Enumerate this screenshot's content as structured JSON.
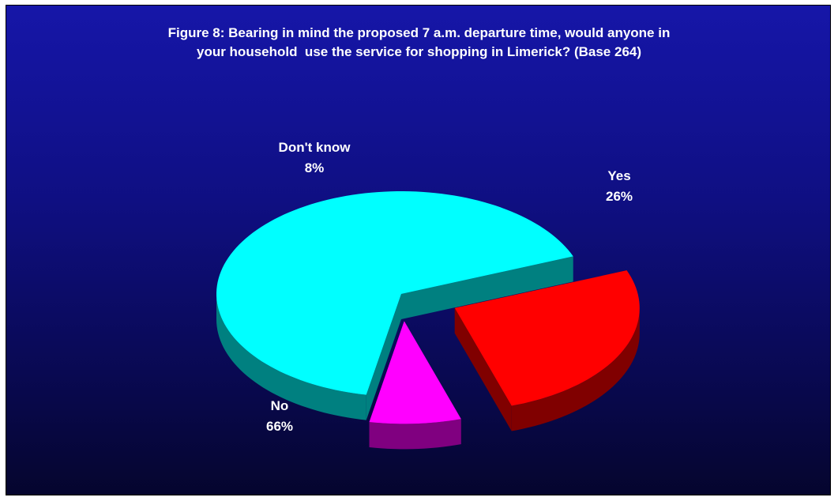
{
  "chart_data": {
    "type": "pie",
    "title_lines": [
      "Figure 8: Bearing in mind the proposed 7 a.m. departure time, would anyone in",
      "your household  use the service for shopping in Limerick? (Base 264)"
    ],
    "categories": [
      "Yes",
      "No",
      "Don't know"
    ],
    "values": [
      26,
      66,
      8
    ],
    "value_labels": [
      "26%",
      "66%",
      "8%"
    ],
    "colors": {
      "Yes": {
        "top": "#ff0000",
        "side": "#800000"
      },
      "No": {
        "top": "#00ffff",
        "side": "#008080"
      },
      "Don't know": {
        "top": "#ff00ff",
        "side": "#800080"
      }
    },
    "exploded": [
      "Yes",
      "Don't know"
    ],
    "three_d": true,
    "legend": "none",
    "background": "#0f0f82"
  }
}
